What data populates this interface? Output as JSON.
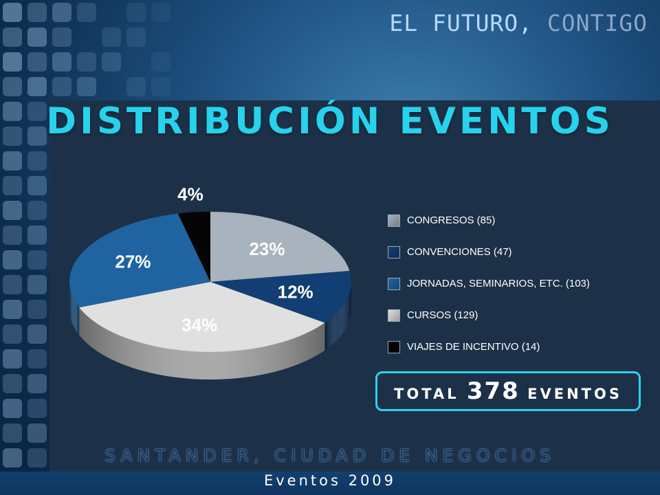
{
  "header": {
    "tagline_main": "EL FUTURO",
    "tagline_sep": ",",
    "tagline_accent": "CONTIGO"
  },
  "chart_data": {
    "type": "pie",
    "title": "DISTRIBUCIÓN EVENTOS",
    "series": [
      {
        "name": "CONGRESOS (85)",
        "value": 85,
        "label": "23%",
        "color": "#a9b3bd"
      },
      {
        "name": "CONVENCIONES (47)",
        "value": 47,
        "label": "12%",
        "color": "#123f73"
      },
      {
        "name": "JORNADAS, SEMINARIOS, ETC. (103)",
        "value": 103,
        "label": "27%",
        "color": "#1f64a1"
      },
      {
        "name": "CURSOS (129)",
        "value": 129,
        "label": "34%",
        "color": "#e0e0e0"
      },
      {
        "name": "VIAJES DE INCENTIVO (14)",
        "value": 14,
        "label": "4%",
        "color": "#050505"
      }
    ],
    "legend_position": "right"
  },
  "total": {
    "prefix": "TOTAL",
    "number": "378",
    "suffix": "EVENTOS"
  },
  "footer": {
    "line": "SANTANDER, CIUDAD DE NEGOCIOS",
    "subtitle": "Eventos 2009"
  }
}
